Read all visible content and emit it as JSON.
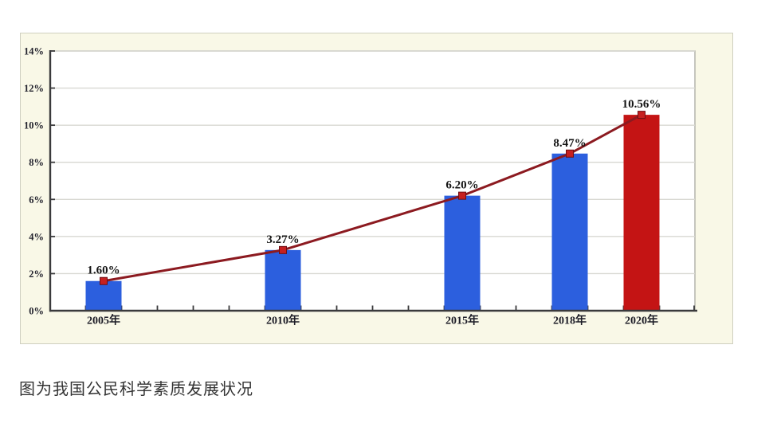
{
  "caption": {
    "text": "图为我国公民科学素质发展状况"
  },
  "chart_data": {
    "type": "bar",
    "overlay": "line",
    "title": "",
    "xlabel": "",
    "ylabel": "",
    "categories": [
      "2005年",
      "2010年",
      "2015年",
      "2018年",
      "2020年"
    ],
    "x_years": [
      2005,
      2010,
      2015,
      2018,
      2020
    ],
    "values": [
      1.6,
      3.27,
      6.2,
      8.47,
      10.56
    ],
    "point_labels": [
      "1.60%",
      "3.27%",
      "6.20%",
      "8.47%",
      "10.56%"
    ],
    "bar_colors": [
      "#2C5FDE",
      "#2C5FDE",
      "#2C5FDE",
      "#2C5FDE",
      "#C41414"
    ],
    "y_tick_values": [
      0,
      2,
      4,
      6,
      8,
      10,
      12,
      14
    ],
    "y_tick_labels": [
      "0%",
      "2%",
      "4%",
      "6%",
      "8%",
      "10%",
      "12%",
      "14%"
    ],
    "ylim": [
      0,
      14
    ],
    "x_axis_minor_ticks_per_year": 1,
    "grid": true,
    "legend": "none",
    "colors": {
      "line": "#8C1A20",
      "marker": "#C62020",
      "marker_border": "#6E0E14",
      "grid_line": "#D8D8D2",
      "axis": "#3A3A3C",
      "plot_border": "#AFAFA7",
      "panel_bg": "#F9F8E7",
      "panel_border": "#CFCFC0",
      "plot_bg": "#FFFFFF",
      "label_text": "#141414"
    }
  }
}
